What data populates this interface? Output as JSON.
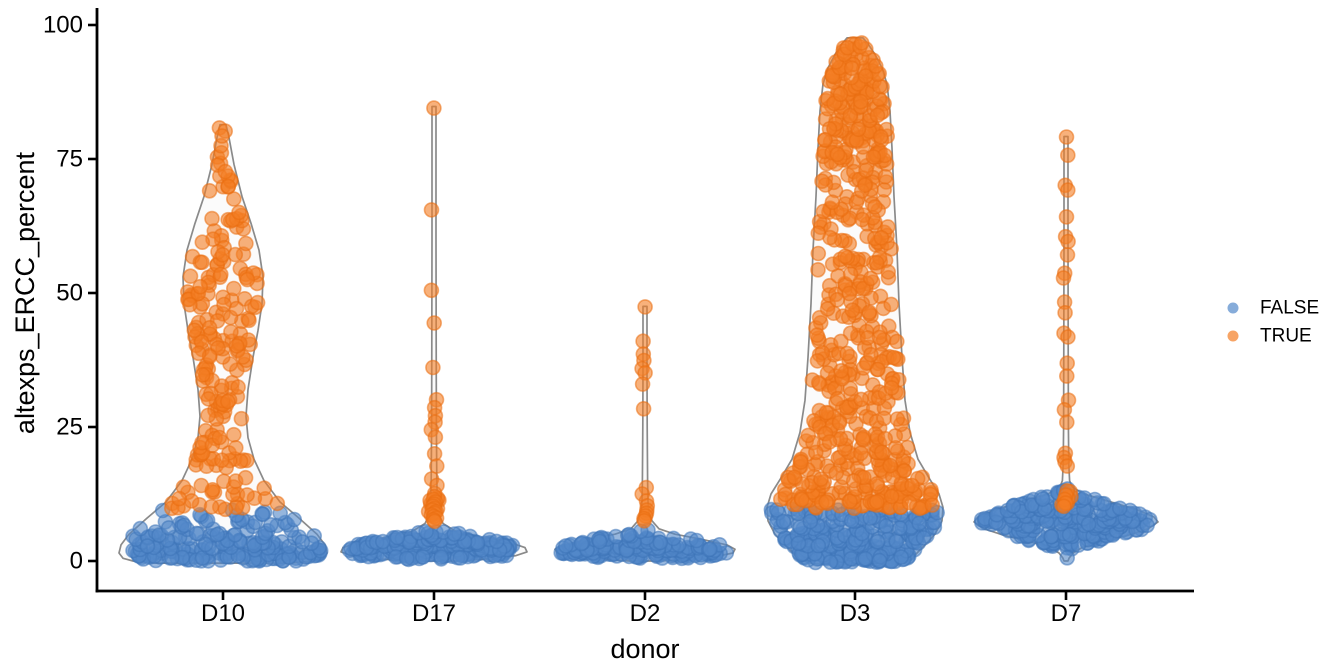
{
  "chart_data": {
    "type": "violin-scatter",
    "xlabel": "donor",
    "ylabel": "altexps_ERCC_percent",
    "ylim": [
      0,
      100
    ],
    "yticks": [
      "0",
      "25",
      "50",
      "75",
      "100"
    ],
    "categories": [
      "D10",
      "D17",
      "D2",
      "D3",
      "D7"
    ],
    "legend": {
      "position": "right",
      "entries": [
        {
          "label": "FALSE",
          "color": "#5389ca",
          "stroke": "#3e74b8"
        },
        {
          "label": "TRUE",
          "color": "#f47d23",
          "stroke": "#e96e10"
        }
      ]
    },
    "style": {
      "violin_fill": "#fbfbfb",
      "violin_stroke": "#8a8a8a",
      "axis_color": "#000000",
      "point_radius": 7,
      "point_fill_opacity": 0.6,
      "point_stroke_opacity": 0.55
    },
    "groups": [
      {
        "donor": "D10",
        "violin": [
          [
            81.4,
            3
          ],
          [
            79,
            6
          ],
          [
            74,
            11
          ],
          [
            68,
            19
          ],
          [
            63,
            28
          ],
          [
            58,
            36
          ],
          [
            53,
            40
          ],
          [
            48,
            39
          ],
          [
            43,
            35
          ],
          [
            38,
            30
          ],
          [
            32,
            25
          ],
          [
            27,
            23
          ],
          [
            23,
            25
          ],
          [
            19,
            31
          ],
          [
            15,
            41
          ],
          [
            11,
            57
          ],
          [
            8,
            76
          ],
          [
            5,
            94
          ],
          [
            3,
            102
          ],
          [
            1.5,
            104
          ],
          [
            0.5,
            100
          ],
          [
            0,
            90
          ],
          [
            -0.4,
            65
          ]
        ],
        "false_strata": [
          {
            "y0": 0,
            "y1": 2.3,
            "n": 115,
            "spread": "violin"
          },
          {
            "y0": 2.3,
            "y1": 4.8,
            "n": 60,
            "spread": "violin"
          },
          {
            "y0": 4.8,
            "y1": 7.5,
            "n": 30,
            "spread": "violin"
          },
          {
            "y0": 7.5,
            "y1": 9.5,
            "n": 12,
            "spread": "violin"
          }
        ],
        "true_strata": [
          {
            "y0": 9.5,
            "y1": 14,
            "n": 26,
            "spread": "violin"
          },
          {
            "y0": 14,
            "y1": 21,
            "n": 22,
            "spread": "violin"
          },
          {
            "y0": 21,
            "y1": 29,
            "n": 20,
            "spread": "violin"
          },
          {
            "y0": 29,
            "y1": 38,
            "n": 30,
            "spread": "violin"
          },
          {
            "y0": 38,
            "y1": 47,
            "n": 40,
            "spread": "violin"
          },
          {
            "y0": 47,
            "y1": 57,
            "n": 42,
            "spread": "violin"
          },
          {
            "y0": 57,
            "y1": 65,
            "n": 20,
            "spread": "violin"
          },
          {
            "y0": 65,
            "y1": 72,
            "n": 10,
            "spread": "violin"
          },
          {
            "y0": 72,
            "y1": 78,
            "n": 6,
            "spread": "violin"
          }
        ],
        "true_points": {
          "jitter": 4,
          "values": [
            80.8,
            80.2,
            79.3
          ]
        },
        "false_points": {
          "jitter": 3,
          "values": []
        }
      },
      {
        "donor": "D17",
        "violin": [
          [
            84.8,
            2
          ],
          [
            60,
            2
          ],
          [
            40,
            2.2
          ],
          [
            25,
            2.4
          ],
          [
            15,
            2.8
          ],
          [
            11,
            3.4
          ],
          [
            8.5,
            5
          ],
          [
            7,
            9
          ],
          [
            5.5,
            22
          ],
          [
            4.5,
            45
          ],
          [
            3.5,
            75
          ],
          [
            2.5,
            91
          ],
          [
            1.7,
            93
          ],
          [
            1,
            82
          ],
          [
            0.4,
            55
          ],
          [
            0,
            22
          ]
        ],
        "false_strata": [
          {
            "y0": 0.8,
            "y1": 2.0,
            "n": 80,
            "spread": "violin"
          },
          {
            "y0": 2.0,
            "y1": 3.4,
            "n": 110,
            "spread": "violin"
          },
          {
            "y0": 3.4,
            "y1": 4.6,
            "n": 45,
            "spread": "violin"
          },
          {
            "y0": 4.6,
            "y1": 5.5,
            "n": 8,
            "spread": "violin"
          },
          {
            "y0": 0.2,
            "y1": 0.8,
            "n": 10,
            "spread": 40
          }
        ],
        "true_strata": [
          {
            "y0": 9.2,
            "y1": 11.8,
            "n": 10,
            "spread": 6
          }
        ],
        "true_points": {
          "jitter": 3,
          "values": [
            84.5,
            65.5,
            50.5,
            44.4,
            36.1,
            30.1,
            28.6,
            27.1,
            25.9,
            24.5,
            23.1,
            20.0,
            17.7,
            15.3,
            14.1,
            12.6,
            12.0,
            11.5,
            11.0,
            10.6,
            10.2,
            9.8,
            9.5,
            9.2,
            8.9,
            8.6,
            8.3,
            8.0,
            7.7,
            7.4
          ]
        },
        "false_points": {
          "jitter": 3,
          "values": []
        }
      },
      {
        "donor": "D2",
        "violin": [
          [
            47.5,
            2
          ],
          [
            35,
            2
          ],
          [
            25,
            2.2
          ],
          [
            15,
            2.6
          ],
          [
            11,
            3
          ],
          [
            9,
            4
          ],
          [
            7.5,
            7
          ],
          [
            6,
            14
          ],
          [
            5,
            30
          ],
          [
            4,
            58
          ],
          [
            3,
            82
          ],
          [
            2.2,
            90
          ],
          [
            1.5,
            88
          ],
          [
            0.8,
            70
          ],
          [
            0.3,
            40
          ],
          [
            0,
            15
          ]
        ],
        "false_strata": [
          {
            "y0": 0.5,
            "y1": 1.8,
            "n": 85,
            "spread": "violin"
          },
          {
            "y0": 1.8,
            "y1": 3.2,
            "n": 80,
            "spread": "violin"
          },
          {
            "y0": 3.2,
            "y1": 4.4,
            "n": 25,
            "spread": "violin"
          },
          {
            "y0": 4.4,
            "y1": 5.8,
            "n": 6,
            "spread": "violin"
          }
        ],
        "true_strata": [],
        "true_points": {
          "jitter": 3,
          "values": [
            47.4,
            41.0,
            38.6,
            37.4,
            35.9,
            35.1,
            33.0,
            28.4,
            13.7,
            12.5,
            11.2,
            10.3,
            9.5,
            8.9,
            8.4,
            7.9,
            7.5
          ]
        },
        "false_points": {
          "jitter": 3,
          "values": []
        }
      },
      {
        "donor": "D3",
        "violin": [
          [
            97.6,
            8
          ],
          [
            96.5,
            13
          ],
          [
            94.5,
            20
          ],
          [
            92,
            27
          ],
          [
            89,
            32
          ],
          [
            84,
            35
          ],
          [
            77,
            37
          ],
          [
            68,
            39
          ],
          [
            58,
            42
          ],
          [
            48,
            44
          ],
          [
            38,
            47
          ],
          [
            30,
            50
          ],
          [
            24,
            55
          ],
          [
            19,
            63
          ],
          [
            15.5,
            74
          ],
          [
            12.5,
            84
          ],
          [
            10,
            88
          ],
          [
            7.5,
            87
          ],
          [
            5,
            80
          ],
          [
            3,
            70
          ],
          [
            1.5,
            62
          ],
          [
            0.3,
            56
          ],
          [
            -0.5,
            42
          ]
        ],
        "false_strata": [
          {
            "y0": -0.3,
            "y1": 2.8,
            "n": 120,
            "spread": "violin"
          },
          {
            "y0": 2.8,
            "y1": 6,
            "n": 95,
            "spread": "violin"
          },
          {
            "y0": 6,
            "y1": 9.8,
            "n": 85,
            "spread": "violin"
          }
        ],
        "true_strata": [
          {
            "y0": 9.8,
            "y1": 13.5,
            "n": 85,
            "spread": "violin"
          },
          {
            "y0": 13.5,
            "y1": 20,
            "n": 75,
            "spread": "violin"
          },
          {
            "y0": 20,
            "y1": 30,
            "n": 75,
            "spread": "violin"
          },
          {
            "y0": 30,
            "y1": 45,
            "n": 85,
            "spread": "violin"
          },
          {
            "y0": 45,
            "y1": 60,
            "n": 70,
            "spread": "violin"
          },
          {
            "y0": 60,
            "y1": 75,
            "n": 70,
            "spread": "violin"
          },
          {
            "y0": 75,
            "y1": 83,
            "n": 65,
            "spread": "violin"
          },
          {
            "y0": 83,
            "y1": 90,
            "n": 60,
            "spread": "violin"
          },
          {
            "y0": 90,
            "y1": 94.5,
            "n": 30,
            "spread": "violin"
          },
          {
            "y0": 94.5,
            "y1": 97,
            "n": 10,
            "spread": "violin"
          }
        ],
        "true_points": {
          "jitter": 3,
          "values": []
        },
        "false_points": {
          "jitter": 3,
          "values": []
        }
      },
      {
        "donor": "D7",
        "violin": [
          [
            79.2,
            2
          ],
          [
            60,
            2
          ],
          [
            40,
            2.2
          ],
          [
            25,
            2.4
          ],
          [
            18,
            2.8
          ],
          [
            15,
            3.6
          ],
          [
            13.8,
            6
          ],
          [
            12.5,
            18
          ],
          [
            11,
            45
          ],
          [
            9.5,
            72
          ],
          [
            8.2,
            88
          ],
          [
            7.3,
            92
          ],
          [
            6,
            82
          ],
          [
            4.8,
            62
          ],
          [
            3.5,
            34
          ],
          [
            2.5,
            16
          ],
          [
            1.5,
            7
          ],
          [
            0.5,
            3
          ],
          [
            0,
            2
          ]
        ],
        "false_strata": [
          {
            "y0": 2.2,
            "y1": 4.5,
            "n": 35,
            "spread": "violin"
          },
          {
            "y0": 4.5,
            "y1": 6.5,
            "n": 80,
            "spread": "violin"
          },
          {
            "y0": 6.5,
            "y1": 9,
            "n": 115,
            "spread": "violin"
          },
          {
            "y0": 9,
            "y1": 11.5,
            "n": 55,
            "spread": "violin"
          },
          {
            "y0": 11.5,
            "y1": 13.5,
            "n": 14,
            "spread": "violin"
          }
        ],
        "true_strata": [
          {
            "y0": 9.6,
            "y1": 13.2,
            "n": 6,
            "spread": 5
          }
        ],
        "true_points": {
          "jitter": 2.5,
          "values": [
            79.1,
            75.7,
            70.1,
            69.2,
            64.2,
            60.5,
            59.6,
            57.1,
            53.7,
            52.8,
            48.3,
            46.3,
            42.5,
            41.8,
            36.9,
            34.5,
            30.0,
            28.2,
            25.9,
            20.1,
            19.3,
            18.5,
            17.7,
            13.1,
            12.3,
            11.5,
            10.8,
            10.2
          ]
        },
        "false_points": {
          "jitter": 2,
          "values": [
            0.6
          ]
        }
      }
    ]
  }
}
